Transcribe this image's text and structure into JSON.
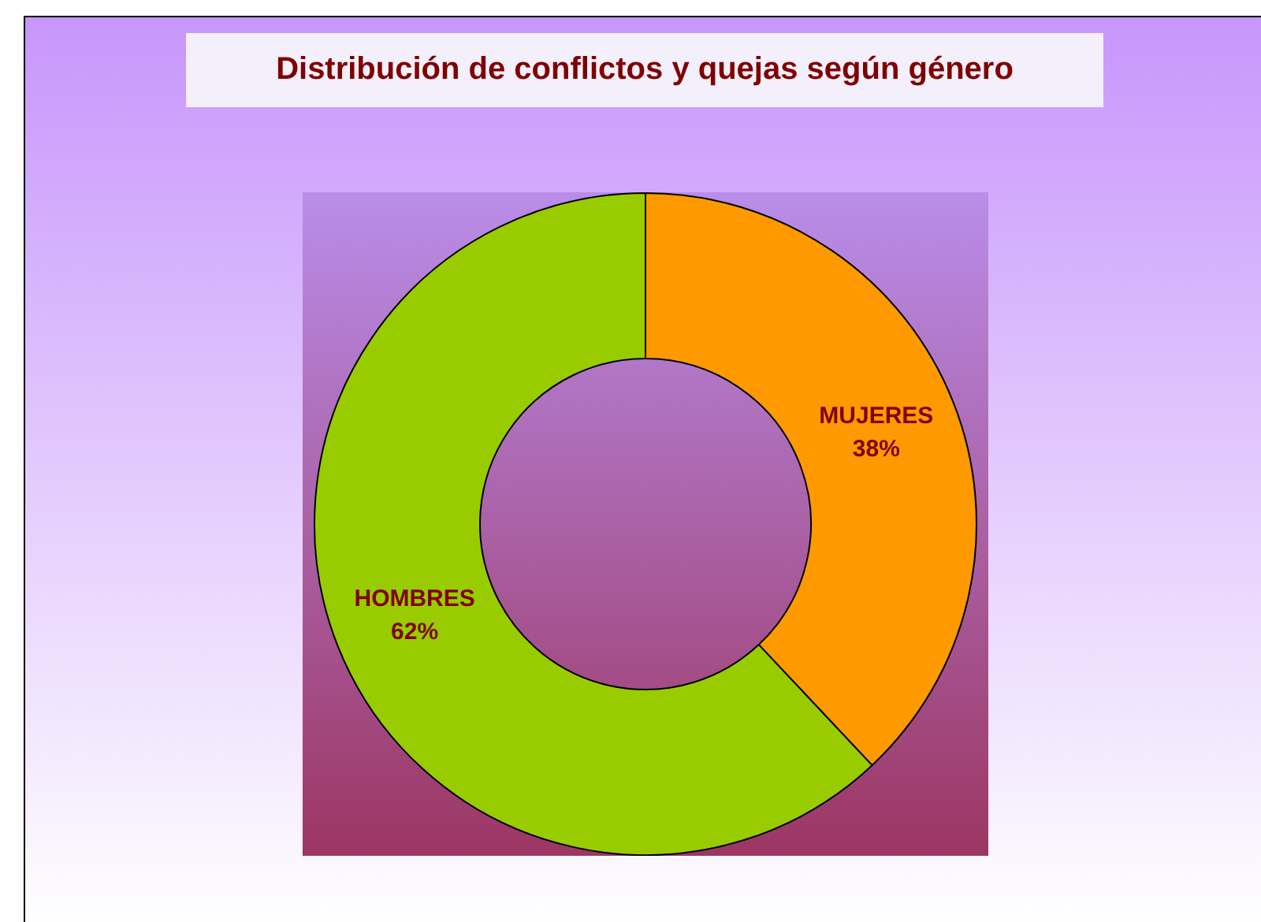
{
  "chart_data": {
    "type": "donut",
    "title": "Distribución de conflictos y quejas según género",
    "categories": [
      "MUJERES",
      "HOMBRES"
    ],
    "values": [
      38,
      62
    ],
    "value_labels": [
      "38%",
      "62%"
    ],
    "colors": [
      "#ff9900",
      "#99cc00"
    ],
    "legend": false
  }
}
